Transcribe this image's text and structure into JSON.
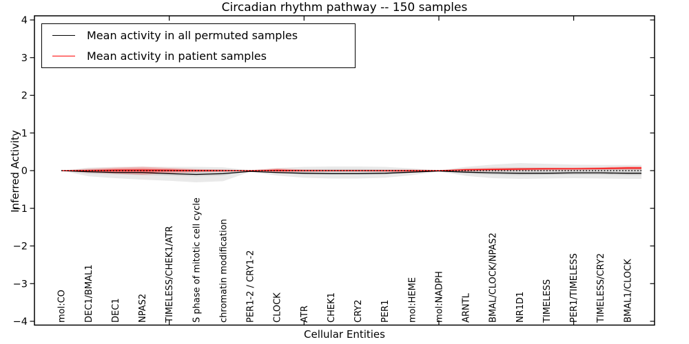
{
  "chart_data": {
    "type": "line",
    "title": "Circadian rhythm pathway -- 150 samples",
    "xlabel": "Cellular Entities",
    "ylabel": "Inferred Activity",
    "ylim": [
      -4,
      4
    ],
    "yticks": [
      -4,
      -3,
      -2,
      -1,
      0,
      1,
      2,
      3,
      4
    ],
    "x_axis_tick_positions": [
      5,
      10,
      15,
      20
    ],
    "grid": false,
    "legend_position": "upper left",
    "legend": [
      {
        "label": "Mean activity in all permuted samples",
        "color": "#000000"
      },
      {
        "label": "Mean activity in patient samples",
        "color": "#ff0000"
      }
    ],
    "categories": [
      "mol:CO",
      "DEC1/BMAL1",
      "DEC1",
      "NPAS2",
      "TIMELESS/CHEK1/ATR",
      "S phase of mitotic cell cycle",
      "chromatin modification",
      "PER1-2 / CRY1-2",
      "CLOCK",
      "ATR",
      "CHEK1",
      "CRY2",
      "PER1",
      "mol:HEME",
      "mol:NADPH",
      "ARNTL",
      "BMAL/CLOCK/NPAS2",
      "NR1D1",
      "TIMELESS",
      "PER1/TIMELESS",
      "TIMELESS/CRY2",
      "BMAL1/CLOCK"
    ],
    "series": [
      {
        "name": "Mean activity in all permuted samples",
        "color": "#000000",
        "values": [
          0.0,
          -0.03,
          -0.05,
          -0.05,
          -0.08,
          -0.1,
          -0.08,
          -0.02,
          -0.05,
          -0.07,
          -0.08,
          -0.08,
          -0.07,
          -0.04,
          -0.01,
          -0.04,
          -0.06,
          -0.07,
          -0.07,
          -0.06,
          -0.06,
          -0.07
        ]
      },
      {
        "name": "Mean activity in patient samples",
        "color": "#ff0000",
        "values": [
          0.0,
          0.0,
          0.01,
          0.01,
          0.01,
          0.0,
          0.0,
          0.0,
          0.01,
          0.0,
          0.0,
          0.0,
          0.0,
          0.0,
          0.0,
          0.02,
          0.03,
          0.04,
          0.05,
          0.05,
          0.06,
          0.07
        ]
      }
    ],
    "bands": [
      {
        "name": "permuted-spread-outer",
        "color": "rgba(0,0,0,0.085)",
        "upper": [
          0.0,
          0.08,
          0.1,
          0.11,
          0.1,
          0.1,
          0.09,
          0.01,
          0.07,
          0.1,
          0.11,
          0.11,
          0.1,
          0.06,
          0.01,
          0.1,
          0.16,
          0.2,
          0.18,
          0.16,
          0.15,
          0.15
        ],
        "lower": [
          0.0,
          -0.15,
          -0.2,
          -0.24,
          -0.27,
          -0.31,
          -0.28,
          -0.03,
          -0.13,
          -0.19,
          -0.21,
          -0.21,
          -0.19,
          -0.12,
          -0.02,
          -0.14,
          -0.2,
          -0.22,
          -0.21,
          -0.2,
          -0.21,
          -0.22
        ]
      },
      {
        "name": "permuted-spread-inner",
        "color": "rgba(0,0,0,0.085)",
        "upper": [
          0.0,
          0.03,
          0.04,
          0.04,
          0.04,
          0.03,
          0.03,
          0.0,
          0.02,
          0.03,
          0.04,
          0.04,
          0.03,
          0.02,
          0.0,
          0.04,
          0.06,
          0.08,
          0.07,
          0.06,
          0.06,
          0.06
        ],
        "lower": [
          0.0,
          -0.08,
          -0.1,
          -0.12,
          -0.13,
          -0.15,
          -0.13,
          -0.01,
          -0.07,
          -0.1,
          -0.11,
          -0.11,
          -0.1,
          -0.06,
          -0.01,
          -0.08,
          -0.11,
          -0.12,
          -0.11,
          -0.11,
          -0.11,
          -0.12
        ]
      },
      {
        "name": "patient-spread-outer",
        "color": "rgba(255,0,0,0.22)",
        "upper": [
          0.0,
          0.05,
          0.08,
          0.1,
          0.07,
          0.04,
          0.03,
          0.01,
          0.06,
          0.03,
          0.02,
          0.02,
          0.02,
          0.03,
          0.01,
          0.06,
          0.08,
          0.08,
          0.08,
          0.08,
          0.09,
          0.11
        ],
        "lower": [
          0.0,
          -0.05,
          -0.08,
          -0.11,
          -0.07,
          -0.04,
          -0.03,
          -0.01,
          -0.04,
          -0.03,
          -0.02,
          -0.02,
          -0.03,
          -0.05,
          -0.01,
          -0.02,
          -0.01,
          0.0,
          0.01,
          0.01,
          0.02,
          0.02
        ]
      },
      {
        "name": "patient-spread-inner",
        "color": "rgba(255,0,0,0.30)",
        "upper": [
          0.0,
          0.02,
          0.04,
          0.05,
          0.03,
          0.02,
          0.01,
          0.0,
          0.03,
          0.01,
          0.01,
          0.01,
          0.01,
          0.01,
          0.0,
          0.04,
          0.05,
          0.06,
          0.06,
          0.06,
          0.07,
          0.09
        ],
        "lower": [
          0.0,
          -0.02,
          -0.04,
          -0.06,
          -0.03,
          -0.02,
          -0.01,
          0.0,
          -0.02,
          -0.01,
          -0.01,
          -0.01,
          -0.01,
          -0.02,
          0.0,
          0.01,
          0.02,
          0.03,
          0.03,
          0.04,
          0.04,
          0.05
        ]
      }
    ],
    "zero_line": {
      "value": 0,
      "style": "dotted",
      "color": "#000000"
    },
    "colors": {
      "axis": "#000000",
      "background": "#ffffff",
      "permuted": "#000000",
      "patient": "#ff0000"
    }
  }
}
